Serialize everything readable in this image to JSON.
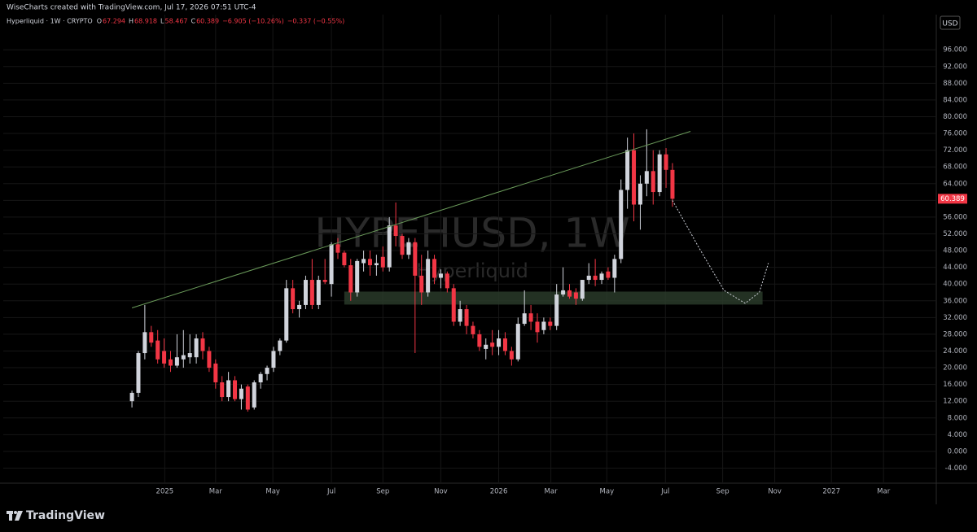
{
  "header": {
    "credit": "WiseCharts created with TradingView.com, Jul 17, 2026 07:51 UTC-4"
  },
  "footer": {
    "brand": "TradingView"
  },
  "chart_data": {
    "type": "candlestick",
    "symbol": "Hyperliquid · 1W · CRYPTO",
    "ohlc_labels": [
      "O",
      "H",
      "L",
      "C"
    ],
    "change": "−6.905 (−10.26%)",
    "change_extra": "−0.337 (−0.55%)",
    "watermark": "HYPEHUSD, 1W",
    "watermark_sub": "Hyperliquid",
    "currency": "USD",
    "up_color": "#d1d4dc",
    "down_color": "#f23645",
    "open": [
      12,
      14,
      23.5,
      28.5,
      26.5,
      24,
      22,
      20.5,
      22,
      22.5,
      22.5,
      27,
      24,
      21,
      16.5,
      13,
      17,
      12.5,
      15.5,
      10.5,
      16.5,
      18.5,
      20,
      24,
      26.5,
      39,
      34,
      35,
      41,
      35,
      41,
      40,
      49.5,
      47.5,
      44.5,
      38,
      45,
      46,
      44.5,
      46.5,
      44,
      54,
      51.5,
      47,
      50,
      42,
      38,
      46,
      41.5,
      42.5,
      39,
      31,
      34,
      30,
      28,
      24.5,
      26,
      25,
      27,
      24,
      22,
      30.5,
      33,
      31,
      29,
      31,
      30,
      37.5,
      38.5,
      38,
      36.5,
      41,
      42,
      41,
      43,
      41.5,
      46,
      62.5,
      72,
      59,
      64,
      67,
      62,
      71,
      67.294
    ],
    "high": [
      14.5,
      24,
      35,
      30,
      29,
      27,
      24,
      28,
      29,
      28,
      28,
      28.5,
      25,
      22,
      18,
      19,
      18,
      16,
      16,
      17,
      19,
      20.5,
      25,
      27,
      41,
      41,
      36,
      42,
      46,
      42,
      46,
      50,
      51,
      48,
      46,
      46,
      48,
      48,
      47,
      49,
      56,
      59.5,
      52,
      51,
      51,
      47,
      48,
      47,
      43.5,
      43,
      40,
      36,
      35,
      31,
      29,
      27,
      29,
      29,
      28.5,
      25,
      32,
      38.5,
      35,
      33,
      32,
      32,
      40,
      44,
      40,
      39,
      41,
      45,
      46,
      43,
      44,
      47,
      65,
      75,
      76,
      66,
      77,
      72,
      72,
      72.5,
      68.918
    ],
    "low": [
      10.5,
      13,
      22,
      25,
      21,
      20,
      19,
      20,
      20,
      21,
      21,
      22,
      19,
      15,
      12,
      12,
      12,
      10,
      9.5,
      10,
      15,
      17,
      19,
      23,
      26,
      33,
      32,
      34,
      34,
      34,
      40,
      37,
      46,
      44,
      36,
      37,
      43,
      42,
      42,
      43,
      43,
      49,
      46,
      46,
      23.5,
      35,
      37,
      40,
      39,
      38,
      30,
      30,
      28,
      27,
      24,
      22,
      23,
      23,
      23,
      20.5,
      21.5,
      30,
      29,
      26,
      28,
      29,
      29,
      37,
      36.5,
      35,
      36,
      40,
      39.5,
      40,
      41,
      38,
      45,
      58,
      55,
      53,
      61,
      59,
      61,
      63,
      58.467
    ],
    "close": [
      14,
      23.5,
      28.5,
      26,
      22,
      21,
      20.5,
      22.5,
      23,
      23.5,
      27,
      24,
      20,
      16.5,
      13,
      17,
      12.5,
      15,
      10,
      16.5,
      18.5,
      20,
      24,
      26.5,
      39,
      34,
      35,
      41,
      35,
      41,
      40.5,
      49.5,
      47.5,
      44.5,
      38,
      45.5,
      46,
      44.5,
      45,
      44,
      54,
      51.5,
      47,
      50,
      42,
      38,
      46,
      41.5,
      42.5,
      39,
      31,
      34,
      30,
      28,
      25,
      25.5,
      25,
      27,
      24,
      22,
      30.5,
      33,
      31,
      28.5,
      31,
      30,
      37.5,
      38.5,
      37,
      36.5,
      41,
      42,
      41,
      42.5,
      41.5,
      46,
      62.5,
      72,
      59,
      64,
      67,
      62,
      71,
      67.3,
      60.389
    ],
    "xlim": [
      -20,
      125
    ],
    "xticks": [
      {
        "value": 5.1,
        "label": "2025"
      },
      {
        "value": 13,
        "label": "Mar"
      },
      {
        "value": 21.9,
        "label": "May"
      },
      {
        "value": 31,
        "label": "Jul"
      },
      {
        "value": 39,
        "label": "Sep"
      },
      {
        "value": 48,
        "label": "Nov"
      },
      {
        "value": 57,
        "label": "2026"
      },
      {
        "value": 65.1,
        "label": "Mar"
      },
      {
        "value": 73.8,
        "label": "May"
      },
      {
        "value": 82.9,
        "label": "Jul"
      },
      {
        "value": 91.8,
        "label": "Sep"
      },
      {
        "value": 99.9,
        "label": "Nov"
      },
      {
        "value": 108.7,
        "label": "2027"
      },
      {
        "value": 116.8,
        "label": "Mar"
      }
    ],
    "ylim": [
      -7.6,
      104.4
    ],
    "yticks": [
      {
        "value": -4,
        "label": "-4.000"
      },
      {
        "value": 0,
        "label": "0.000"
      },
      {
        "value": 4,
        "label": "4.000"
      },
      {
        "value": 8,
        "label": "8.000"
      },
      {
        "value": 12,
        "label": "12.000"
      },
      {
        "value": 16,
        "label": "16.000"
      },
      {
        "value": 20,
        "label": "20.000"
      },
      {
        "value": 24,
        "label": "24.000"
      },
      {
        "value": 28,
        "label": "28.000"
      },
      {
        "value": 32,
        "label": "32.000"
      },
      {
        "value": 36,
        "label": "36.000"
      },
      {
        "value": 40,
        "label": "40.000"
      },
      {
        "value": 44,
        "label": "44.000"
      },
      {
        "value": 48,
        "label": "48.000"
      },
      {
        "value": 52,
        "label": "52.000"
      },
      {
        "value": 56,
        "label": "56.000"
      },
      {
        "value": 60,
        "label": "60.000"
      },
      {
        "value": 64,
        "label": "64.000"
      },
      {
        "value": 68,
        "label": "68.000"
      },
      {
        "value": 72,
        "label": "72.000"
      },
      {
        "value": 76,
        "label": "76.000"
      },
      {
        "value": 80,
        "label": "80.000"
      },
      {
        "value": 84,
        "label": "84.000"
      },
      {
        "value": 88,
        "label": "88.000"
      },
      {
        "value": 92,
        "label": "92.000"
      },
      {
        "value": 96,
        "label": "96.000"
      }
    ],
    "grid": true,
    "trendline": {
      "color": "#6a9a5a",
      "x": [
        0,
        86.8
      ],
      "y": [
        34.3,
        76.5
      ]
    },
    "zone": {
      "color": "#2c3d2c",
      "x": [
        33,
        98
      ],
      "y": [
        35.1,
        38.2
      ]
    },
    "projection": {
      "color": "#d1d4dc",
      "x": [
        84,
        88,
        92,
        95.3,
        97.5,
        98.9
      ],
      "y": [
        60,
        49,
        38.5,
        35.4,
        38,
        45
      ]
    }
  }
}
